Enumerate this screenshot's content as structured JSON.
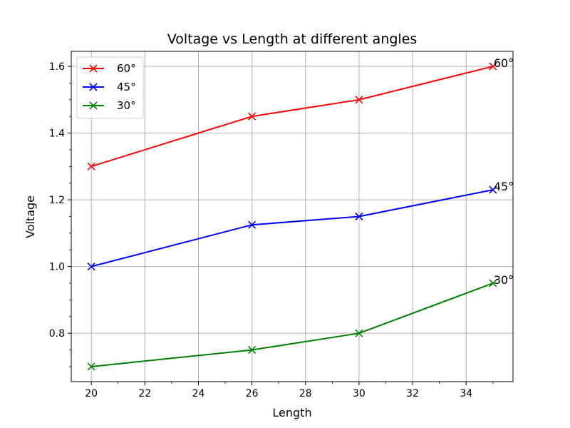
{
  "chart_data": {
    "type": "line",
    "title": "Voltage vs Length at different angles",
    "xlabel": "Length",
    "ylabel": "Voltage",
    "xlim": [
      19.25,
      35.75
    ],
    "ylim": [
      0.655,
      1.645
    ],
    "x_ticks": [
      20,
      22,
      24,
      26,
      28,
      30,
      32,
      34
    ],
    "x_tick_labels": [
      "20",
      "22",
      "24",
      "26",
      "28",
      "30",
      "32",
      "34"
    ],
    "x_minor_step": 1,
    "y_ticks": [
      0.8,
      1.0,
      1.2,
      1.4,
      1.6
    ],
    "y_tick_labels": [
      "0.8",
      "1.0",
      "1.2",
      "1.4",
      "1.6"
    ],
    "y_minor_step": 0.05,
    "grid": true,
    "legend_position": "upper-left",
    "marker": "x",
    "series": [
      {
        "name": "60°",
        "color": "#ff0000",
        "x": [
          20,
          26,
          30,
          35
        ],
        "y": [
          1.3,
          1.45,
          1.5,
          1.6
        ]
      },
      {
        "name": "45°",
        "color": "#0000ff",
        "x": [
          20,
          26,
          30,
          35
        ],
        "y": [
          1.0,
          1.125,
          1.15,
          1.23
        ]
      },
      {
        "name": "30°",
        "color": "#008000",
        "x": [
          20,
          26,
          30,
          35
        ],
        "y": [
          0.7,
          0.75,
          0.8,
          0.95
        ]
      }
    ],
    "annotations": [
      {
        "text": "60°",
        "x": 35,
        "y": 1.6
      },
      {
        "text": "45°",
        "x": 35,
        "y": 1.23
      },
      {
        "text": "30°",
        "x": 35,
        "y": 0.95
      }
    ]
  }
}
